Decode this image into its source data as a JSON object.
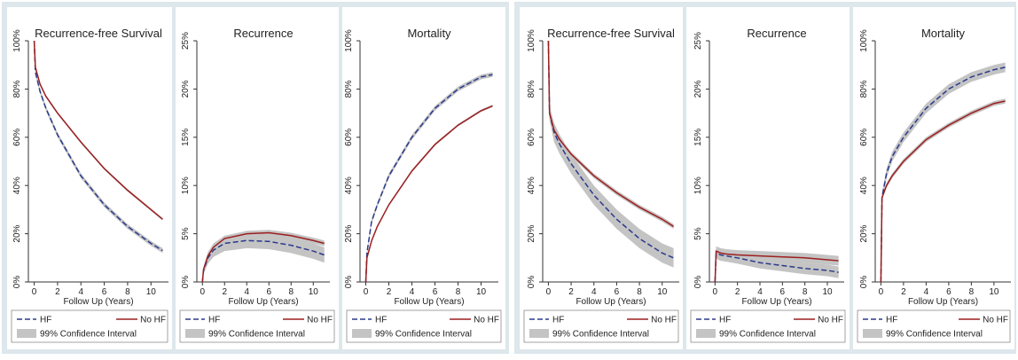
{
  "chart_data": [
    {
      "type": "line",
      "title": "Recurrence-free Survival",
      "xlabel": "Follow Up (Years)",
      "ci_name": "99% Confidence Interval",
      "ci_color": "#c4c4c4",
      "x": [
        0,
        0.1,
        0.5,
        1,
        2,
        4,
        6,
        8,
        10,
        11
      ],
      "xlim": [
        -0.5,
        11.5
      ],
      "xticks": [
        0,
        2,
        4,
        6,
        8,
        10
      ],
      "ylim": [
        0,
        100
      ],
      "yticks": [
        {
          "value": 0,
          "label": "0%"
        },
        {
          "value": 20,
          "label": "20%"
        },
        {
          "value": 40,
          "label": "40%"
        },
        {
          "value": 60,
          "label": "60%"
        },
        {
          "value": 80,
          "label": "80%"
        },
        {
          "value": 100,
          "label": "100%"
        }
      ],
      "series": [
        {
          "name": "HF",
          "color": "#2b3a8c",
          "dashed": true,
          "values": [
            100,
            87,
            79,
            72,
            61,
            44,
            32,
            23,
            16,
            13
          ],
          "lower": [
            100,
            86,
            78,
            71,
            60,
            43,
            31,
            22,
            15,
            12
          ],
          "upper": [
            100,
            88,
            80,
            73,
            62,
            45,
            33,
            24,
            17,
            14
          ]
        },
        {
          "name": "No HF",
          "color": "#9c1f1f",
          "dashed": false,
          "values": [
            100,
            89,
            82,
            77,
            70,
            58,
            47,
            38,
            30,
            26
          ],
          "lower": [
            100,
            88.5,
            81.5,
            76.5,
            69.5,
            57.5,
            46.5,
            37.5,
            29.5,
            25.5
          ],
          "upper": [
            100,
            89.5,
            82.5,
            77.5,
            70.5,
            58.5,
            47.5,
            38.5,
            30.5,
            26.5
          ]
        }
      ]
    },
    {
      "type": "line",
      "title": "Recurrence",
      "xlabel": "Follow Up (Years)",
      "ci_name": "99% Confidence Interval",
      "ci_color": "#c4c4c4",
      "x": [
        0,
        0.1,
        0.5,
        1,
        2,
        4,
        6,
        8,
        10,
        11
      ],
      "xlim": [
        -0.5,
        11.5
      ],
      "xticks": [
        0,
        2,
        4,
        6,
        8,
        10
      ],
      "ylim": [
        0,
        25
      ],
      "yticks": [
        {
          "value": 0,
          "label": "0%"
        },
        {
          "value": 5,
          "label": "5%"
        },
        {
          "value": 10,
          "label": "10%"
        },
        {
          "value": 15,
          "label": "15%"
        },
        {
          "value": 20,
          "label": "20%"
        },
        {
          "value": 25,
          "label": "25%"
        }
      ],
      "series": [
        {
          "name": "HF",
          "color": "#2b3a8c",
          "dashed": true,
          "values": [
            0,
            1.2,
            2.5,
            3.3,
            4.0,
            4.3,
            4.2,
            3.8,
            3.2,
            2.8
          ],
          "lower": [
            0,
            0.8,
            1.9,
            2.6,
            3.2,
            3.5,
            3.4,
            3.0,
            2.4,
            2.0
          ],
          "upper": [
            0,
            1.6,
            3.1,
            4.0,
            4.8,
            5.1,
            5.0,
            4.6,
            4.0,
            3.6
          ]
        },
        {
          "name": "No HF",
          "color": "#9c1f1f",
          "dashed": false,
          "values": [
            0,
            1.3,
            2.7,
            3.6,
            4.5,
            5.0,
            5.1,
            4.8,
            4.3,
            4.0
          ],
          "lower": [
            0,
            1.1,
            2.4,
            3.3,
            4.2,
            4.7,
            4.8,
            4.5,
            4.0,
            3.7
          ],
          "upper": [
            0,
            1.5,
            3.0,
            3.9,
            4.8,
            5.3,
            5.4,
            5.1,
            4.6,
            4.3
          ]
        }
      ]
    },
    {
      "type": "line",
      "title": "Mortality",
      "xlabel": "Follow Up (Years)",
      "ci_name": "99% Confidence Interval",
      "ci_color": "#c4c4c4",
      "x": [
        0,
        0.1,
        0.5,
        1,
        2,
        4,
        6,
        8,
        10,
        11
      ],
      "xlim": [
        -0.5,
        11.5
      ],
      "xticks": [
        0,
        2,
        4,
        6,
        8,
        10
      ],
      "ylim": [
        0,
        100
      ],
      "yticks": [
        {
          "value": 0,
          "label": "0%"
        },
        {
          "value": 20,
          "label": "20%"
        },
        {
          "value": 40,
          "label": "40%"
        },
        {
          "value": 60,
          "label": "60%"
        },
        {
          "value": 80,
          "label": "80%"
        },
        {
          "value": 100,
          "label": "100%"
        }
      ],
      "series": [
        {
          "name": "HF",
          "color": "#2b3a8c",
          "dashed": true,
          "values": [
            0,
            12,
            25,
            32,
            44,
            60,
            72,
            80,
            85,
            86
          ],
          "lower": [
            0,
            11,
            24,
            31,
            43,
            59,
            71,
            79,
            84,
            85
          ],
          "upper": [
            0,
            13,
            26,
            33,
            45,
            61,
            73,
            81,
            86,
            87
          ]
        },
        {
          "name": "No HF",
          "color": "#9c1f1f",
          "dashed": false,
          "values": [
            0,
            10,
            17,
            23,
            32,
            46,
            57,
            65,
            71,
            73
          ],
          "lower": [
            0,
            9.5,
            16.5,
            22.5,
            31.5,
            45.5,
            56.5,
            64.5,
            70.5,
            72.5
          ],
          "upper": [
            0,
            10.5,
            17.5,
            23.5,
            32.5,
            46.5,
            57.5,
            65.5,
            71.5,
            73.5
          ]
        }
      ]
    },
    {
      "type": "line",
      "title": "Recurrence-free Survival",
      "xlabel": "Follow Up (Years)",
      "ci_name": "99% Confidence Interval",
      "ci_color": "#c4c4c4",
      "x": [
        0,
        0.1,
        0.5,
        1,
        2,
        4,
        6,
        8,
        10,
        11
      ],
      "xlim": [
        -0.5,
        11.5
      ],
      "xticks": [
        0,
        2,
        4,
        6,
        8,
        10
      ],
      "ylim": [
        0,
        100
      ],
      "yticks": [
        {
          "value": 0,
          "label": "0%"
        },
        {
          "value": 20,
          "label": "20%"
        },
        {
          "value": 40,
          "label": "40%"
        },
        {
          "value": 60,
          "label": "60%"
        },
        {
          "value": 80,
          "label": "80%"
        },
        {
          "value": 100,
          "label": "100%"
        }
      ],
      "series": [
        {
          "name": "HF",
          "color": "#2b3a8c",
          "dashed": true,
          "values": [
            100,
            70,
            62,
            57,
            49,
            36,
            26,
            18,
            12,
            10
          ],
          "lower": [
            100,
            67,
            58,
            53,
            45,
            32,
            22,
            14,
            8,
            6
          ],
          "upper": [
            100,
            73,
            66,
            61,
            53,
            40,
            30,
            22,
            16,
            14
          ]
        },
        {
          "name": "No HF",
          "color": "#9c1f1f",
          "dashed": false,
          "values": [
            100,
            70,
            63,
            59,
            53,
            44,
            37,
            31,
            26,
            23
          ],
          "lower": [
            100,
            69,
            62,
            58,
            52,
            43,
            36,
            30,
            25,
            22
          ],
          "upper": [
            100,
            71,
            64,
            60,
            54,
            45,
            38,
            32,
            27,
            24
          ]
        }
      ]
    },
    {
      "type": "line",
      "title": "Recurrence",
      "xlabel": "Follow Up (Years)",
      "ci_name": "99% Confidence Interval",
      "ci_color": "#c4c4c4",
      "x": [
        0,
        0.1,
        0.5,
        1,
        2,
        4,
        6,
        8,
        10,
        11
      ],
      "xlim": [
        -0.5,
        11.5
      ],
      "xticks": [
        0,
        2,
        4,
        6,
        8,
        10
      ],
      "ylim": [
        0,
        25
      ],
      "yticks": [
        {
          "value": 0,
          "label": "0%"
        },
        {
          "value": 5,
          "label": "5%"
        },
        {
          "value": 10,
          "label": "10%"
        },
        {
          "value": 15,
          "label": "15%"
        },
        {
          "value": 20,
          "label": "20%"
        },
        {
          "value": 25,
          "label": "25%"
        }
      ],
      "series": [
        {
          "name": "HF",
          "color": "#2b3a8c",
          "dashed": true,
          "values": [
            0,
            3.0,
            2.8,
            2.7,
            2.5,
            2.0,
            1.7,
            1.4,
            1.2,
            1.0
          ],
          "lower": [
            0,
            2.4,
            2.2,
            2.1,
            1.9,
            1.4,
            1.1,
            0.8,
            0.6,
            0.4
          ],
          "upper": [
            0,
            3.6,
            3.4,
            3.3,
            3.1,
            2.6,
            2.3,
            2.0,
            1.8,
            1.6
          ]
        },
        {
          "name": "No HF",
          "color": "#9c1f1f",
          "dashed": false,
          "values": [
            0,
            3.2,
            3.0,
            2.9,
            2.8,
            2.7,
            2.6,
            2.5,
            2.3,
            2.2
          ],
          "lower": [
            0,
            2.7,
            2.5,
            2.4,
            2.3,
            2.2,
            2.1,
            2.0,
            1.8,
            1.7
          ],
          "upper": [
            0,
            3.7,
            3.5,
            3.4,
            3.3,
            3.2,
            3.1,
            3.0,
            2.8,
            2.7
          ]
        }
      ]
    },
    {
      "type": "line",
      "title": "Mortality",
      "xlabel": "Follow Up (Years)",
      "ci_name": "99% Confidence Interval",
      "ci_color": "#c4c4c4",
      "x": [
        0,
        0.1,
        0.5,
        1,
        2,
        4,
        6,
        8,
        10,
        11
      ],
      "xlim": [
        -0.5,
        11.5
      ],
      "xticks": [
        0,
        2,
        4,
        6,
        8,
        10
      ],
      "ylim": [
        0,
        100
      ],
      "yticks": [
        {
          "value": 0,
          "label": "0%"
        },
        {
          "value": 20,
          "label": "20%"
        },
        {
          "value": 40,
          "label": "40%"
        },
        {
          "value": 60,
          "label": "60%"
        },
        {
          "value": 80,
          "label": "80%"
        },
        {
          "value": 100,
          "label": "100%"
        }
      ],
      "series": [
        {
          "name": "HF",
          "color": "#2b3a8c",
          "dashed": true,
          "values": [
            0,
            35,
            45,
            52,
            60,
            72,
            80,
            85,
            88,
            89
          ],
          "lower": [
            0,
            33,
            43,
            50,
            58,
            70,
            78,
            83,
            86,
            87
          ],
          "upper": [
            0,
            37,
            47,
            54,
            62,
            74,
            82,
            87,
            90,
            91
          ]
        },
        {
          "name": "No HF",
          "color": "#9c1f1f",
          "dashed": false,
          "values": [
            0,
            35,
            40,
            44,
            50,
            59,
            65,
            70,
            74,
            75
          ],
          "lower": [
            0,
            34,
            39,
            43,
            49,
            58,
            64,
            69,
            73,
            74
          ],
          "upper": [
            0,
            36,
            41,
            45,
            51,
            60,
            66,
            71,
            75,
            76
          ]
        }
      ]
    }
  ]
}
